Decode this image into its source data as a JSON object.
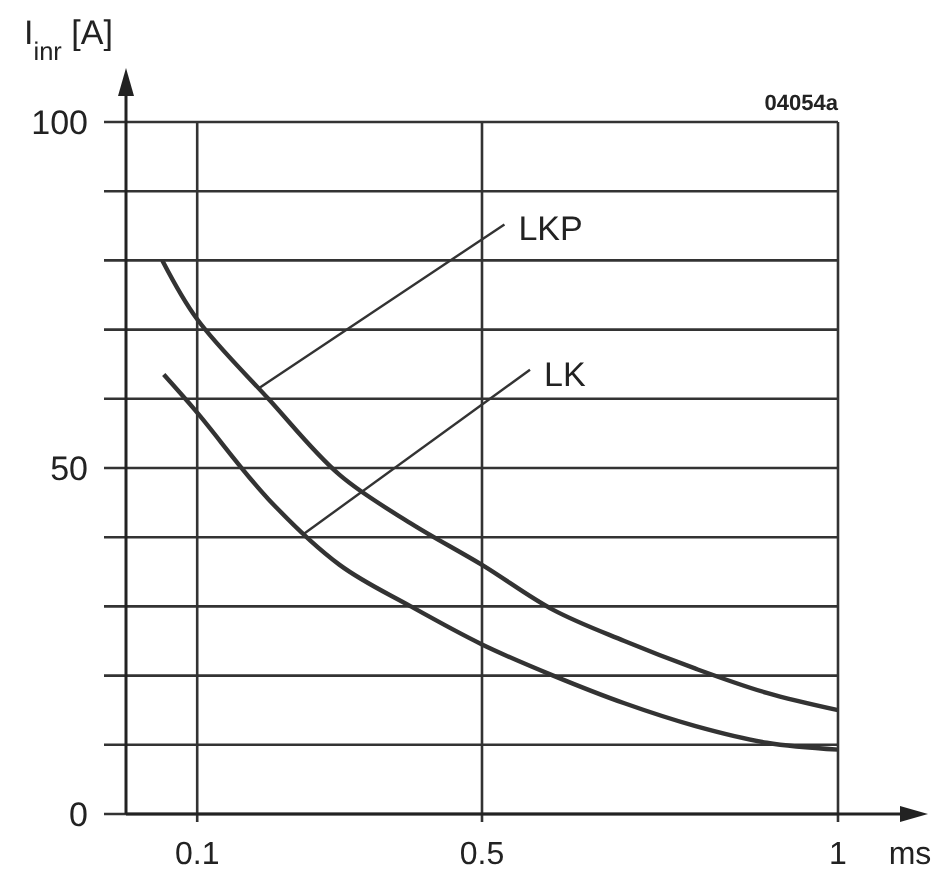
{
  "chart_data": {
    "type": "line",
    "ylabel": "I$_{inr}$ [A]",
    "xlabel": "ms",
    "series": [
      {
        "color": "#333333",
        "x": [
          0.051,
          0.1,
          0.2,
          0.3,
          0.4,
          0.5,
          0.6,
          0.7,
          0.8,
          0.9,
          1
        ],
        "values": [
          80,
          71.5,
          60,
          49,
          42,
          36,
          29.5,
          25,
          21,
          17.5,
          15
        ]
      },
      {
        "color": "#333333",
        "x": [
          0.053,
          0.1,
          0.2,
          0.3,
          0.4,
          0.5,
          0.6,
          0.7,
          0.8,
          0.9,
          1
        ],
        "values": [
          63.5,
          58,
          45.5,
          36,
          30,
          24.5,
          20,
          16,
          12.7,
          10.3,
          9.3
        ]
      }
    ],
    "xlim": [
      0,
      1
    ],
    "ylim": [
      0,
      100
    ],
    "xticks": [
      0.1,
      0.5,
      1
    ],
    "yticks": [
      0,
      {
        "value": 10,
        "label": null
      },
      {
        "value": 20,
        "label": null
      },
      {
        "value": 30,
        "label": null
      },
      {
        "value": 40,
        "label": null
      },
      50,
      {
        "value": 60,
        "label": null
      },
      {
        "value": 70,
        "label": null
      },
      {
        "value": 80,
        "label": null
      },
      {
        "value": 90,
        "label": null
      },
      100
    ],
    "grid": true,
    "marker": "none",
    "line_style": "solid",
    "annotations": [
      {
        "text": "LKP",
        "x": 0.186,
        "y": 61.5
      },
      {
        "text": "LK",
        "x": 0.25,
        "y": 40.5
      },
      "04054a"
    ]
  }
}
